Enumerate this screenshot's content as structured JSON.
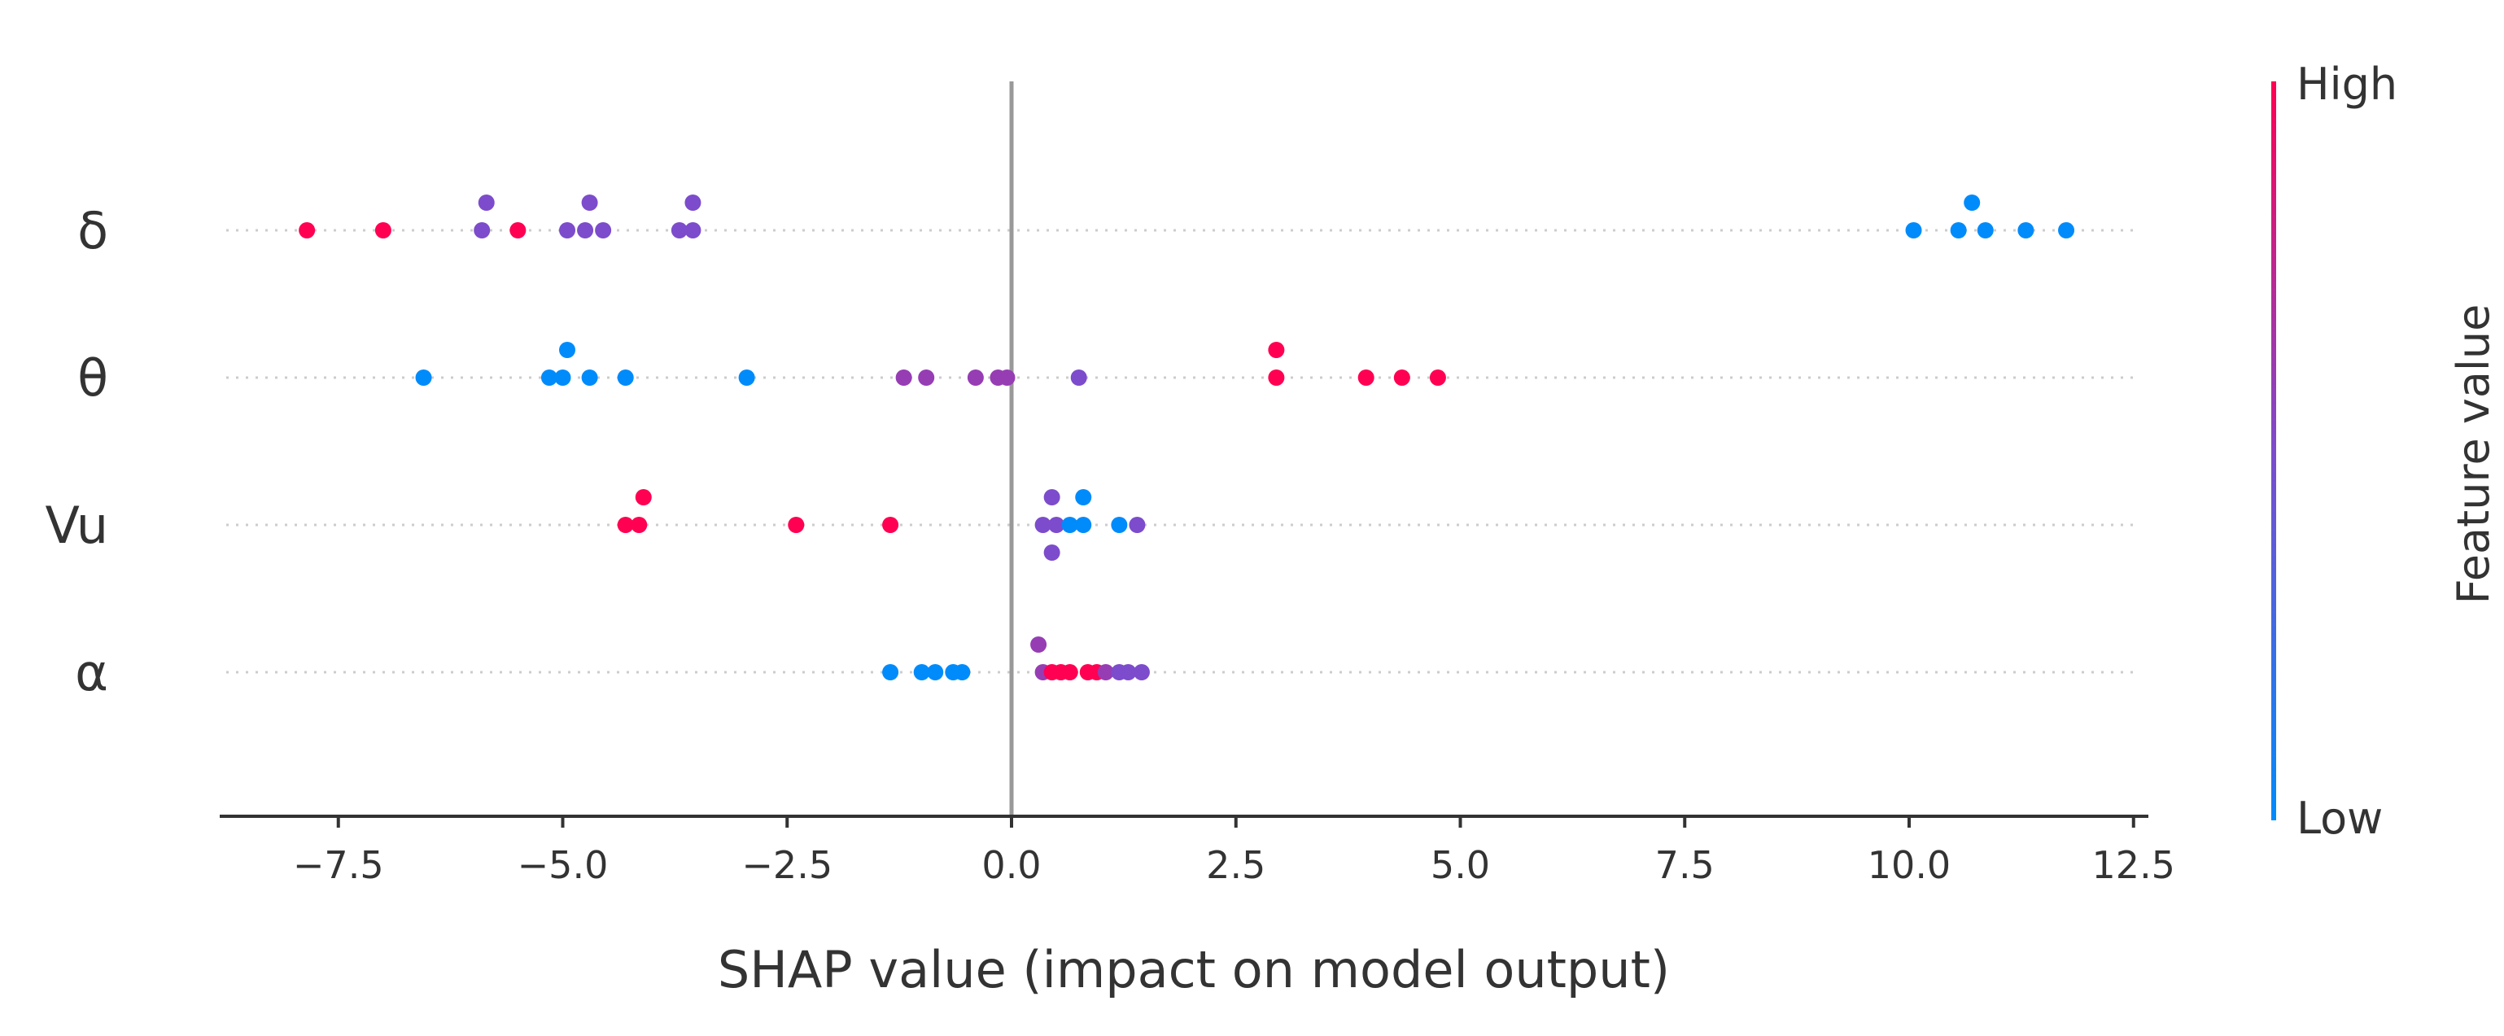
{
  "chart_data": {
    "type": "scatter",
    "subtype": "shap-beeswarm",
    "title": "",
    "xlabel": "SHAP value (impact on model output)",
    "xlim": [
      -8.8,
      12.7
    ],
    "xticks": [
      -7.5,
      -5.0,
      -2.5,
      0.0,
      2.5,
      5.0,
      7.5,
      10.0,
      12.5
    ],
    "xtick_labels": [
      "−7.5",
      "−5.0",
      "−2.5",
      "0.0",
      "2.5",
      "5.0",
      "7.5",
      "10.0",
      "12.5"
    ],
    "zero_line": 0,
    "colorbar": {
      "title": "Feature value",
      "high_label": "High",
      "low_label": "Low",
      "low_color": "#008bfb",
      "high_color": "#ff0052"
    },
    "features": [
      {
        "name": "δ",
        "points": [
          {
            "x": -7.85,
            "level": 0,
            "v": 1.0
          },
          {
            "x": -7.0,
            "level": 0,
            "v": 1.0
          },
          {
            "x": -5.85,
            "level": 1,
            "v": 0.5
          },
          {
            "x": -5.9,
            "level": 0,
            "v": 0.5
          },
          {
            "x": -5.5,
            "level": 0,
            "v": 1.0
          },
          {
            "x": -4.7,
            "level": 1,
            "v": 0.5
          },
          {
            "x": -4.95,
            "level": 0,
            "v": 0.5
          },
          {
            "x": -4.75,
            "level": 0,
            "v": 0.5
          },
          {
            "x": -4.55,
            "level": 0,
            "v": 0.5
          },
          {
            "x": -3.55,
            "level": 1,
            "v": 0.5
          },
          {
            "x": -3.7,
            "level": 0,
            "v": 0.5
          },
          {
            "x": -3.55,
            "level": 0,
            "v": 0.5
          },
          {
            "x": 10.7,
            "level": 1,
            "v": 0.0
          },
          {
            "x": 10.05,
            "level": 0,
            "v": 0.0
          },
          {
            "x": 10.55,
            "level": 0,
            "v": 0.0
          },
          {
            "x": 10.85,
            "level": 0,
            "v": 0.0
          },
          {
            "x": 11.3,
            "level": 0,
            "v": 0.0
          },
          {
            "x": 11.75,
            "level": 0,
            "v": 0.0
          }
        ]
      },
      {
        "name": "θ",
        "points": [
          {
            "x": -6.55,
            "level": 0,
            "v": 0.0
          },
          {
            "x": -4.95,
            "level": 1,
            "v": 0.0
          },
          {
            "x": -5.15,
            "level": 0,
            "v": 0.0
          },
          {
            "x": -5.0,
            "level": 0,
            "v": 0.0
          },
          {
            "x": -4.7,
            "level": 0,
            "v": 0.0
          },
          {
            "x": -4.3,
            "level": 0,
            "v": 0.0
          },
          {
            "x": -2.95,
            "level": 0,
            "v": 0.0
          },
          {
            "x": -1.2,
            "level": 0,
            "v": 0.6
          },
          {
            "x": -0.95,
            "level": 0,
            "v": 0.6
          },
          {
            "x": -0.4,
            "level": 0,
            "v": 0.6
          },
          {
            "x": -0.15,
            "level": 0,
            "v": 0.6
          },
          {
            "x": -0.05,
            "level": 0,
            "v": 0.6
          },
          {
            "x": 0.75,
            "level": 0,
            "v": 0.5
          },
          {
            "x": 2.95,
            "level": 1,
            "v": 1.0
          },
          {
            "x": 2.95,
            "level": 0,
            "v": 1.0
          },
          {
            "x": 3.95,
            "level": 0,
            "v": 1.0
          },
          {
            "x": 4.35,
            "level": 0,
            "v": 1.0
          },
          {
            "x": 4.75,
            "level": 0,
            "v": 1.0
          }
        ]
      },
      {
        "name": "Vu",
        "points": [
          {
            "x": -4.1,
            "level": 1,
            "v": 1.0
          },
          {
            "x": -4.3,
            "level": 0,
            "v": 1.0
          },
          {
            "x": -4.15,
            "level": 0,
            "v": 1.0
          },
          {
            "x": -2.4,
            "level": 0,
            "v": 1.0
          },
          {
            "x": -1.35,
            "level": 0,
            "v": 1.0
          },
          {
            "x": 0.45,
            "level": 1,
            "v": 0.5
          },
          {
            "x": 0.8,
            "level": 1,
            "v": 0.0
          },
          {
            "x": 0.35,
            "level": 0,
            "v": 0.5
          },
          {
            "x": 0.5,
            "level": 0,
            "v": 0.5
          },
          {
            "x": 0.65,
            "level": 0,
            "v": 0.0
          },
          {
            "x": 0.8,
            "level": 0,
            "v": 0.0
          },
          {
            "x": 1.2,
            "level": 0,
            "v": 0.0
          },
          {
            "x": 1.4,
            "level": 0,
            "v": 0.5
          },
          {
            "x": 0.45,
            "level": -1,
            "v": 0.5
          }
        ]
      },
      {
        "name": "α",
        "points": [
          {
            "x": 0.3,
            "level": 1,
            "v": 0.6
          },
          {
            "x": -1.35,
            "level": 0,
            "v": 0.0
          },
          {
            "x": -1.0,
            "level": 0,
            "v": 0.0
          },
          {
            "x": -0.85,
            "level": 0,
            "v": 0.0
          },
          {
            "x": -0.65,
            "level": 0,
            "v": 0.0
          },
          {
            "x": -0.55,
            "level": 0,
            "v": 0.0
          },
          {
            "x": 0.35,
            "level": 0,
            "v": 0.6
          },
          {
            "x": 0.45,
            "level": 0,
            "v": 1.0
          },
          {
            "x": 0.55,
            "level": 0,
            "v": 1.0
          },
          {
            "x": 0.65,
            "level": 0,
            "v": 1.0
          },
          {
            "x": 0.85,
            "level": 0,
            "v": 1.0
          },
          {
            "x": 0.95,
            "level": 0,
            "v": 1.0
          },
          {
            "x": 1.05,
            "level": 0,
            "v": 0.6
          },
          {
            "x": 1.2,
            "level": 0,
            "v": 0.5
          },
          {
            "x": 1.3,
            "level": 0,
            "v": 0.5
          },
          {
            "x": 1.45,
            "level": 0,
            "v": 0.5
          }
        ]
      }
    ]
  }
}
